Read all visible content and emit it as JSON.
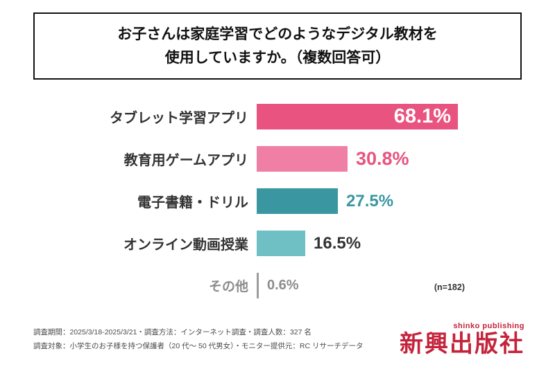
{
  "title": {
    "line1": "お子さんは家庭学習でどのようなデジタル教材を",
    "line2": "使用していますか。（複数回答可）"
  },
  "chart_data": {
    "type": "bar",
    "orientation": "horizontal",
    "title": "お子さんは家庭学習でどのようなデジタル教材を使用していますか。（複数回答可）",
    "categories": [
      "タブレット学習アプリ",
      "教育用ゲームアプリ",
      "電子書籍・ドリル",
      "オンライン動画授業",
      "その他"
    ],
    "values": [
      68.1,
      30.8,
      27.5,
      16.5,
      0.6
    ],
    "value_labels": [
      "68.1%",
      "30.8%",
      "27.5%",
      "16.5%",
      "0.6%"
    ],
    "colors": [
      "#e8537f",
      "#f07fa5",
      "#3a96a0",
      "#6fc0c5",
      "#9b9b9b"
    ],
    "value_inside": [
      true,
      false,
      false,
      false,
      false
    ],
    "value_colors": [
      "#ffffff",
      "#e8537f",
      "#3a96a0",
      "#333333",
      "#8c8c8c"
    ],
    "xlim": [
      0,
      100
    ],
    "grid": false,
    "legend": "none",
    "n_note": "(n=182)"
  },
  "footer": {
    "line1": "調査期間：2025/3/18-2025/3/21・調査方法：インターネット調査・調査人数：327 名",
    "line2": "調査対象：小学生のお子様を持つ保護者（20 代～ 50 代男女）・モニター提供元：RC リサーチデータ"
  },
  "logo": {
    "sub": "shinko publishing",
    "main": "新興出版社",
    "color": "#c4233b"
  }
}
